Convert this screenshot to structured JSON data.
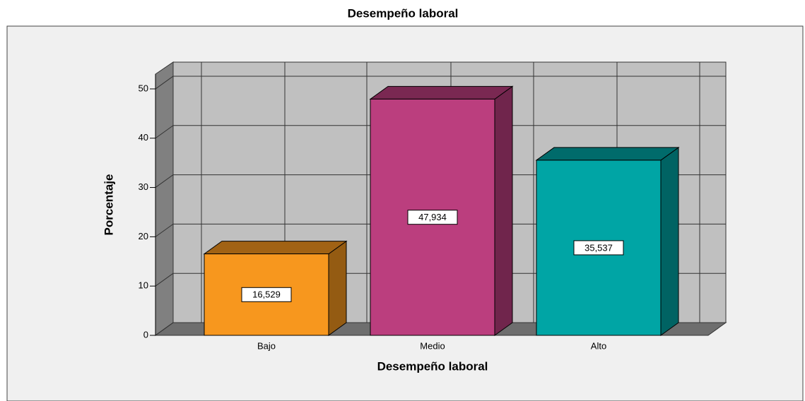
{
  "chart_data": {
    "type": "bar3d",
    "title": "Desempeño laboral",
    "x_label": "Desempeño laboral",
    "y_label": "Porcentaje",
    "categories": [
      "Bajo",
      "Medio",
      "Alto"
    ],
    "values": [
      16.529,
      47.934,
      35.537
    ],
    "value_labels": [
      "16,529",
      "47,934",
      "35,537"
    ],
    "colors": [
      "#f7971e",
      "#bb3e7e",
      "#00a5a5"
    ],
    "ylim": [
      0,
      53
    ],
    "yticks": [
      0,
      10,
      20,
      30,
      40,
      50
    ],
    "grid": true
  }
}
